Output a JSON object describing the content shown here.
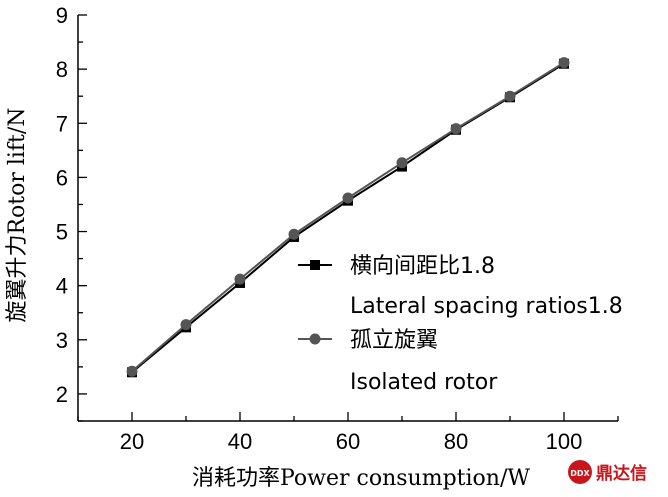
{
  "chart_data": {
    "type": "line",
    "title": "",
    "xlabel": "消耗功率Power consumption/W",
    "ylabel": "旋翼升力Rotor lift/N",
    "xlim": [
      10,
      110
    ],
    "ylim": [
      1.5,
      9
    ],
    "xticks": [
      20,
      40,
      60,
      80,
      100
    ],
    "yticks": [
      2,
      3,
      4,
      5,
      6,
      7,
      8,
      9
    ],
    "x": [
      20,
      30,
      40,
      50,
      60,
      70,
      80,
      90,
      100
    ],
    "series": [
      {
        "name": "横向间距比1.8",
        "name_line2": "Lateral spacing ratios1.8",
        "marker": "square",
        "color": "#000000",
        "values": [
          2.4,
          3.23,
          4.05,
          4.9,
          5.57,
          6.2,
          6.88,
          7.48,
          8.1
        ]
      },
      {
        "name": "孤立旋翼",
        "name_line2": "Isolated rotor",
        "marker": "circle",
        "color": "#555555",
        "values": [
          2.42,
          3.28,
          4.12,
          4.95,
          5.62,
          6.27,
          6.9,
          7.5,
          8.12
        ]
      }
    ],
    "legend_position": "lower-right",
    "grid": false
  },
  "watermark": {
    "text": "鼎达信",
    "logo_text": "DDX",
    "color": "#c8161d"
  }
}
